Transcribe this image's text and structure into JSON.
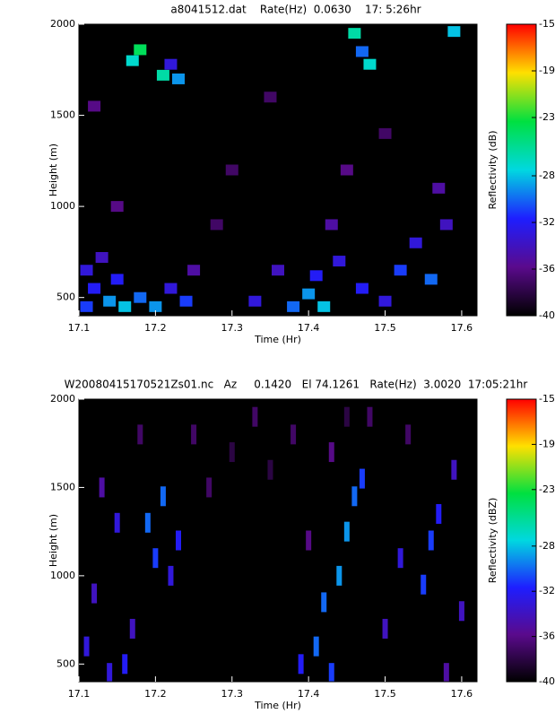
{
  "chart_data": [
    {
      "type": "heatmap",
      "title": "a8041512.dat    Rate(Hz)  0.0630    17: 5:26hr",
      "x_label": "Time (Hr)",
      "y_label": "Height (m)",
      "colorbar_label": "Reflectivity (dB)",
      "xlim": [
        17.1,
        17.62
      ],
      "xticks": [
        17.1,
        17.2,
        17.3,
        17.4,
        17.5,
        17.6
      ],
      "ylim": [
        400,
        2000
      ],
      "yticks": [
        500,
        1000,
        1500,
        2000
      ],
      "clim": [
        -40,
        -15
      ],
      "cticks": [
        -40,
        -36,
        -32,
        -28,
        -23,
        -19,
        -15
      ],
      "colorscale": [
        "#000000",
        "#5a0a8c",
        "#1e1eff",
        "#00d8e0",
        "#00e040",
        "#ffe000",
        "#ff0000"
      ],
      "x": [
        17.11,
        17.12,
        17.11,
        17.13,
        17.14,
        17.16,
        17.15,
        17.18,
        17.2,
        17.22,
        17.24,
        17.25,
        17.18,
        17.17,
        17.21,
        17.23,
        17.22,
        17.12,
        17.3,
        17.28,
        17.33,
        17.36,
        17.38,
        17.4,
        17.42,
        17.41,
        17.44,
        17.43,
        17.46,
        17.47,
        17.48,
        17.45,
        17.47,
        17.5,
        17.52,
        17.54,
        17.56,
        17.58,
        17.59,
        17.57,
        17.35,
        17.15,
        17.5
      ],
      "y": [
        450,
        550,
        650,
        720,
        480,
        450,
        600,
        500,
        450,
        550,
        480,
        650,
        1860,
        1800,
        1720,
        1700,
        1780,
        1550,
        1200,
        900,
        480,
        650,
        450,
        520,
        450,
        620,
        700,
        900,
        1950,
        1850,
        1780,
        1200,
        550,
        480,
        650,
        800,
        600,
        900,
        1960,
        1100,
        1600,
        1000,
        1400
      ],
      "values": [
        -31,
        -32,
        -33,
        -34,
        -29,
        -28,
        -32,
        -30,
        -29,
        -33,
        -31,
        -35,
        -24,
        -27,
        -26,
        -29,
        -33,
        -36,
        -37,
        -37,
        -33,
        -34,
        -30,
        -29,
        -28,
        -32,
        -33,
        -35,
        -26,
        -30,
        -27,
        -36,
        -32,
        -33,
        -31,
        -33,
        -30,
        -34,
        -28,
        -35,
        -37,
        -36,
        -37
      ]
    },
    {
      "type": "heatmap",
      "title": "W20080415170521Zs01.nc   Az     0.1420   El 74.1261   Rate(Hz)  3.0020  17:05:21hr",
      "x_label": "Time (Hr)",
      "y_label": "Height (m)",
      "colorbar_label": "Reflectivity (dBZ)",
      "xlim": [
        17.1,
        17.62
      ],
      "xticks": [
        17.1,
        17.2,
        17.3,
        17.4,
        17.5,
        17.6
      ],
      "ylim": [
        400,
        2000
      ],
      "yticks": [
        500,
        1000,
        1500,
        2000
      ],
      "clim": [
        -40,
        -15
      ],
      "cticks": [
        -40,
        -36,
        -32,
        -28,
        -23,
        -19,
        -15
      ],
      "colorscale": [
        "#000000",
        "#5a0a8c",
        "#1e1eff",
        "#00d8e0",
        "#00e040",
        "#ffe000",
        "#ff0000"
      ],
      "x": [
        17.11,
        17.12,
        17.13,
        17.15,
        17.17,
        17.19,
        17.21,
        17.2,
        17.22,
        17.23,
        17.25,
        17.27,
        17.3,
        17.33,
        17.35,
        17.38,
        17.4,
        17.39,
        17.41,
        17.43,
        17.42,
        17.44,
        17.45,
        17.46,
        17.47,
        17.43,
        17.48,
        17.5,
        17.52,
        17.55,
        17.56,
        17.57,
        17.59,
        17.6,
        17.53,
        17.14,
        17.16,
        17.18,
        17.45,
        17.58
      ],
      "y": [
        600,
        900,
        1500,
        1300,
        700,
        1300,
        1450,
        1100,
        1000,
        1200,
        1800,
        1500,
        1700,
        1900,
        1600,
        1800,
        1200,
        500,
        600,
        450,
        850,
        1000,
        1250,
        1450,
        1550,
        1700,
        1900,
        700,
        1100,
        950,
        1200,
        1350,
        1600,
        800,
        1800,
        450,
        500,
        1800,
        1900,
        450
      ],
      "values": [
        -33,
        -34,
        -35,
        -33,
        -34,
        -30,
        -30,
        -31,
        -33,
        -32,
        -37,
        -37,
        -38,
        -37,
        -38,
        -37,
        -36,
        -32,
        -30,
        -31,
        -30,
        -29,
        -29,
        -30,
        -31,
        -36,
        -37,
        -34,
        -33,
        -31,
        -31,
        -32,
        -34,
        -34,
        -37,
        -33,
        -32,
        -37,
        -38,
        -35
      ]
    }
  ]
}
